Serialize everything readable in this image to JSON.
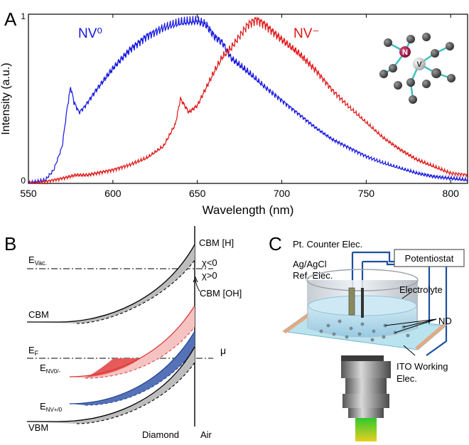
{
  "panels": {
    "a": {
      "letter": "A"
    },
    "b": {
      "letter": "B"
    },
    "c": {
      "letter": "C"
    }
  },
  "chart_data": {
    "type": "line",
    "xlabel": "Wavelength (nm)",
    "ylabel": "Intensity (a.u.)",
    "xlim": [
      550,
      810
    ],
    "ylim": [
      0,
      1
    ],
    "x_ticks": [
      550,
      600,
      650,
      700,
      750,
      800
    ],
    "y_ticks": [
      0,
      1
    ],
    "grid": false,
    "legend": "inline labels",
    "series": [
      {
        "name": "NV⁰",
        "color": "#1515e0",
        "points": [
          [
            550,
            0.0
          ],
          [
            560,
            0.02
          ],
          [
            565,
            0.08
          ],
          [
            570,
            0.22
          ],
          [
            573,
            0.45
          ],
          [
            575,
            0.57
          ],
          [
            577,
            0.48
          ],
          [
            580,
            0.42
          ],
          [
            583,
            0.45
          ],
          [
            590,
            0.55
          ],
          [
            600,
            0.68
          ],
          [
            610,
            0.79
          ],
          [
            620,
            0.87
          ],
          [
            630,
            0.92
          ],
          [
            640,
            0.95
          ],
          [
            650,
            0.96
          ],
          [
            655,
            0.94
          ],
          [
            660,
            0.87
          ],
          [
            665,
            0.83
          ],
          [
            670,
            0.74
          ],
          [
            680,
            0.66
          ],
          [
            690,
            0.57
          ],
          [
            700,
            0.49
          ],
          [
            710,
            0.41
          ],
          [
            720,
            0.33
          ],
          [
            730,
            0.26
          ],
          [
            740,
            0.21
          ],
          [
            750,
            0.16
          ],
          [
            760,
            0.12
          ],
          [
            770,
            0.09
          ],
          [
            780,
            0.06
          ],
          [
            790,
            0.04
          ],
          [
            800,
            0.03
          ],
          [
            810,
            0.02
          ]
        ]
      },
      {
        "name": "NV⁻",
        "color": "#e01515",
        "points": [
          [
            550,
            0.0
          ],
          [
            560,
            0.01
          ],
          [
            570,
            0.03
          ],
          [
            578,
            0.05
          ],
          [
            585,
            0.05
          ],
          [
            600,
            0.08
          ],
          [
            610,
            0.11
          ],
          [
            620,
            0.15
          ],
          [
            630,
            0.22
          ],
          [
            637,
            0.35
          ],
          [
            640,
            0.5
          ],
          [
            645,
            0.42
          ],
          [
            650,
            0.46
          ],
          [
            655,
            0.56
          ],
          [
            660,
            0.66
          ],
          [
            665,
            0.75
          ],
          [
            670,
            0.8
          ],
          [
            675,
            0.87
          ],
          [
            680,
            0.94
          ],
          [
            685,
            0.97
          ],
          [
            690,
            0.94
          ],
          [
            700,
            0.85
          ],
          [
            710,
            0.77
          ],
          [
            720,
            0.67
          ],
          [
            730,
            0.55
          ],
          [
            740,
            0.45
          ],
          [
            750,
            0.36
          ],
          [
            760,
            0.27
          ],
          [
            770,
            0.2
          ],
          [
            780,
            0.14
          ],
          [
            790,
            0.1
          ],
          [
            800,
            0.06
          ],
          [
            810,
            0.05
          ]
        ]
      }
    ]
  },
  "band_diagram": {
    "labels": {
      "evac": "E",
      "evac_sub": "Vac.",
      "cbm": "CBM",
      "ef": "E",
      "ef_sub": "F",
      "nv0": "E",
      "nv0_sub": "NV0/-",
      "nvp": "E",
      "nvp_sub": "NV+/0",
      "vbm": "VBM",
      "cbm_h": "CBM [H]",
      "chi_neg": "χ<0",
      "chi_pos": "χ>0",
      "cbm_oh": "CBM [OH]",
      "mu": "μ",
      "diamond": "Diamond",
      "air": "Air"
    }
  },
  "setup": {
    "labels": {
      "counter": "Pt. Counter Elec.",
      "ref_line1": "Ag/AgCl",
      "ref_line2": "Ref. Elec.",
      "potentiostat": "Potentiostat",
      "electrolyte": "Electrolyte",
      "nd": "ND",
      "ito_line1": "ITO Working",
      "ito_line2": "Elec."
    }
  },
  "inset_molecule": {
    "labels": {
      "n": "N",
      "v": "V"
    }
  }
}
